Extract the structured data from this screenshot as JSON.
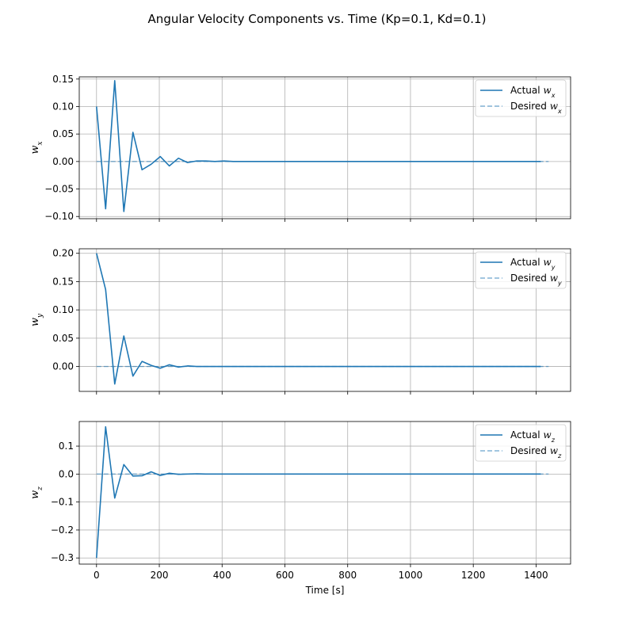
{
  "chart_data": {
    "type": "line",
    "title": "Angular Velocity Components vs. Time (Kp=0.1, Kd=0.1)",
    "xlabel": "Time [s]",
    "xlim": [
      -55,
      1510
    ],
    "xticks": [
      0,
      200,
      400,
      600,
      800,
      1000,
      1200,
      1400
    ],
    "line_color": "#1f77b4",
    "grid": true,
    "legend_placement": "top-right",
    "subplots": [
      {
        "ylabel": "w_x",
        "ylim": [
          -0.104,
          0.154
        ],
        "yticks": [
          -0.1,
          -0.05,
          0.0,
          0.05,
          0.1,
          0.15
        ],
        "ytick_labels": [
          "−0.10",
          "−0.05",
          "0.00",
          "0.05",
          "0.10",
          "0.15"
        ],
        "series": [
          {
            "name": "Actual w_x",
            "style": "solid",
            "x": [
              0,
              29,
              58,
              87,
              116,
              145,
              174,
              203,
              232,
              261,
              290,
              319,
              348,
              377,
              406,
              435,
              1415
            ],
            "y": [
              0.1,
              -0.086,
              0.147,
              -0.091,
              0.053,
              -0.015,
              -0.005,
              0.009,
              -0.008,
              0.006,
              -0.002,
              0.001,
              0.001,
              0.0,
              0.001,
              0.0,
              0.0
            ]
          },
          {
            "name": "Desired w_x",
            "style": "dashed",
            "x": [
              0,
              1440
            ],
            "y": [
              0.0,
              0.0
            ]
          }
        ]
      },
      {
        "ylabel": "w_y",
        "ylim": [
          -0.044,
          0.208
        ],
        "yticks": [
          0.0,
          0.05,
          0.1,
          0.15,
          0.2
        ],
        "ytick_labels": [
          "0.00",
          "0.05",
          "0.10",
          "0.15",
          "0.20"
        ],
        "series": [
          {
            "name": "Actual w_y",
            "style": "solid",
            "x": [
              0,
              29,
              58,
              87,
              116,
              145,
              174,
              203,
              232,
              261,
              290,
              319,
              348,
              377,
              406,
              1415
            ],
            "y": [
              0.2,
              0.136,
              -0.031,
              0.054,
              -0.017,
              0.009,
              0.002,
              -0.003,
              0.003,
              -0.001,
              0.001,
              0.0,
              0.0,
              0.0,
              0.0,
              0.0
            ]
          },
          {
            "name": "Desired w_y",
            "style": "dashed",
            "x": [
              0,
              1440
            ],
            "y": [
              0.0,
              0.0
            ]
          }
        ]
      },
      {
        "ylabel": "w_z",
        "ylim": [
          -0.322,
          0.188
        ],
        "yticks": [
          -0.3,
          -0.2,
          -0.1,
          0.0,
          0.1
        ],
        "ytick_labels": [
          "−0.3",
          "−0.2",
          "−0.1",
          "0.0",
          "0.1"
        ],
        "series": [
          {
            "name": "Actual w_z",
            "style": "solid",
            "x": [
              0,
              29,
              58,
              87,
              116,
              145,
              174,
              203,
              232,
              261,
              290,
              319,
              348,
              377,
              406,
              1415
            ],
            "y": [
              -0.3,
              0.169,
              -0.086,
              0.034,
              -0.007,
              -0.006,
              0.008,
              -0.005,
              0.003,
              -0.001,
              0.0,
              0.001,
              0.0,
              0.0,
              0.0,
              0.0
            ]
          },
          {
            "name": "Desired w_z",
            "style": "dashed",
            "x": [
              0,
              1440
            ],
            "y": [
              0.0,
              0.0
            ]
          }
        ]
      }
    ]
  }
}
